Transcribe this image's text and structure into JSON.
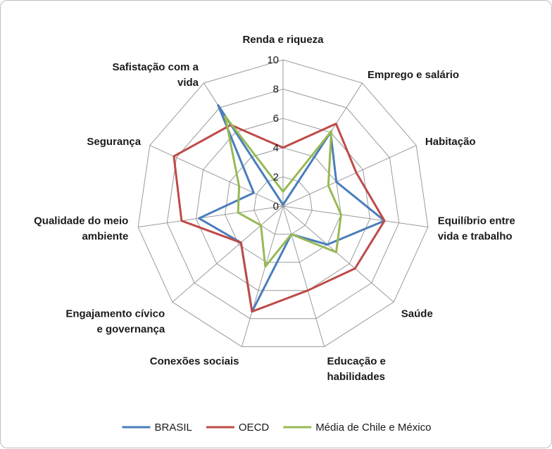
{
  "chart_data": {
    "type": "radar",
    "categories": [
      "Renda e riqueza",
      "Emprego e salário",
      "Habitação",
      "Equilíbrio entre vida e trabalho",
      "Saúde",
      "Educação e habilidades",
      "Conexões sociais",
      "Engajamento cívico e governança",
      "Qualidade do meio ambiente",
      "Segurança",
      "Safistação com a vida"
    ],
    "category_label_lines": [
      [
        "Renda e riqueza"
      ],
      [
        "Emprego e salário"
      ],
      [
        "Habitação"
      ],
      [
        "Equilíbrio entre",
        "vida e trabalho"
      ],
      [
        "Saúde"
      ],
      [
        "Educação e",
        "habilidades"
      ],
      [
        "Conexões sociais"
      ],
      [
        "Engajamento cívico",
        "e governança"
      ],
      [
        "Qualidade do meio",
        "ambiente"
      ],
      [
        "Segurança"
      ],
      [
        "Safistação com a",
        "vida"
      ]
    ],
    "rlim": [
      0,
      10
    ],
    "ticks": [
      0,
      2,
      4,
      6,
      8,
      10
    ],
    "tick_labels": [
      "0",
      "2",
      "4",
      "6",
      "8",
      "10"
    ],
    "grid": true,
    "legend_position": "bottom",
    "series": [
      {
        "name": "BRASIL",
        "color": "#4a7ebb",
        "values": [
          0.1,
          6.0,
          4.0,
          7.0,
          4.0,
          2.0,
          7.5,
          3.8,
          5.8,
          2.2,
          8.2
        ]
      },
      {
        "name": "OECD",
        "color": "#be4b48",
        "values": [
          4.0,
          6.7,
          5.5,
          7.0,
          6.5,
          6.0,
          7.5,
          3.8,
          7.0,
          8.2,
          6.6
        ]
      },
      {
        "name": "Média de Chile e México",
        "color": "#98b954",
        "values": [
          1.0,
          6.1,
          3.4,
          4.0,
          4.8,
          2.0,
          4.3,
          2.0,
          3.1,
          3.3,
          7.3
        ]
      }
    ]
  }
}
